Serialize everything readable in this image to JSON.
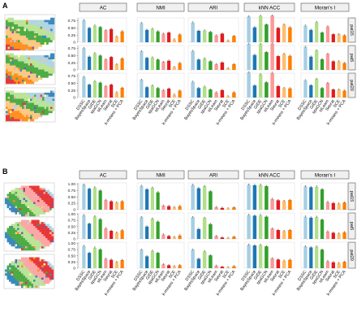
{
  "panels": [
    {
      "letter": "A",
      "metrics": [
        "AC",
        "NMI",
        "ARI",
        "kNN_ACC",
        "Moran's I"
      ],
      "metric_labels": [
        "AC",
        "NMI",
        "ARI",
        "kNN  ACC",
        "Moran's I"
      ],
      "rows": [
        "pat15",
        "pat5",
        "pat20"
      ],
      "ylim": [
        0,
        0.85
      ],
      "ticks": [
        0,
        0.25,
        0.5,
        0.75
      ],
      "tick_labels": [
        "0",
        "0.25",
        "0.50",
        "0.75"
      ],
      "chart_data": {
        "type": "bar",
        "categories": [
          "DSSC",
          "BayesSpace",
          "GIDE",
          "spaGCN",
          "stLearn",
          "Seurat",
          "SCE",
          "k-means + PCA"
        ],
        "values": {
          "pat15": {
            "AC": [
              0.77,
              0.5,
              0.58,
              0.53,
              0.42,
              0.46,
              0.2,
              0.38
            ],
            "NMI": [
              0.67,
              0.43,
              0.47,
              0.38,
              0.3,
              0.34,
              0.1,
              0.27
            ],
            "ARI": [
              0.69,
              0.4,
              0.41,
              0.36,
              0.24,
              0.3,
              0.06,
              0.22
            ],
            "kNN_ACC": [
              0.9,
              0.52,
              0.92,
              0.62,
              0.93,
              0.5,
              0.62,
              0.52
            ],
            "Moran's I": [
              0.58,
              0.43,
              0.7,
              0.34,
              0.55,
              0.28,
              0.28,
              0.24
            ]
          },
          "pat5": {
            "AC": [
              0.76,
              0.46,
              0.58,
              0.5,
              0.37,
              0.45,
              0.2,
              0.4
            ],
            "NMI": [
              0.65,
              0.42,
              0.43,
              0.36,
              0.28,
              0.32,
              0.1,
              0.24
            ],
            "ARI": [
              0.66,
              0.36,
              0.4,
              0.3,
              0.2,
              0.26,
              0.06,
              0.2
            ],
            "kNN_ACC": [
              0.91,
              0.52,
              0.9,
              0.62,
              0.92,
              0.48,
              0.56,
              0.49
            ],
            "Moran's I": [
              0.8,
              0.46,
              0.68,
              0.37,
              0.56,
              0.3,
              0.3,
              0.24
            ]
          },
          "pat20": {
            "AC": [
              0.72,
              0.45,
              0.57,
              0.52,
              0.4,
              0.45,
              0.18,
              0.34
            ],
            "NMI": [
              0.62,
              0.36,
              0.42,
              0.33,
              0.26,
              0.31,
              0.1,
              0.24
            ],
            "ARI": [
              0.55,
              0.33,
              0.38,
              0.28,
              0.18,
              0.26,
              0.04,
              0.18
            ],
            "kNN_ACC": [
              0.88,
              0.42,
              0.81,
              0.53,
              0.86,
              0.4,
              0.33,
              0.32
            ],
            "Moran's I": [
              0.6,
              0.43,
              0.65,
              0.33,
              0.51,
              0.28,
              0.28,
              0.24
            ]
          }
        }
      }
    },
    {
      "letter": "B",
      "metrics": [
        "AC",
        "NMI",
        "ARI",
        "kNN_ACC",
        "Moran's I"
      ],
      "metric_labels": [
        "AC",
        "NMI",
        "ARI",
        "kNN  ACC",
        "Moran's I"
      ],
      "rows": [
        "pat15",
        "pat5",
        "pat20"
      ],
      "ylim": [
        0,
        1.05
      ],
      "ticks": [
        0,
        0.25,
        0.5,
        0.75,
        1.0
      ],
      "tick_labels": [
        "0",
        "0.25",
        "0.50",
        "0.75",
        "1.00"
      ],
      "chart_data": {
        "type": "bar",
        "categories": [
          "DSSC",
          "BayesSpace",
          "GIDE",
          "spaGCN",
          "stLearn",
          "Seurat",
          "SCE",
          "k-means + PCA"
        ],
        "values": {
          "pat15": {
            "AC": [
              0.98,
              0.82,
              0.87,
              0.75,
              0.38,
              0.33,
              0.28,
              0.33
            ],
            "NMI": [
              0.93,
              0.8,
              0.86,
              0.68,
              0.16,
              0.14,
              0.1,
              0.14
            ],
            "ARI": [
              0.97,
              0.84,
              0.92,
              0.72,
              0.1,
              0.07,
              0.05,
              0.09
            ],
            "kNN_ACC": [
              0.98,
              0.96,
              0.97,
              0.92,
              0.42,
              0.37,
              0.34,
              0.38
            ],
            "Moran's I": [
              0.92,
              0.88,
              0.9,
              0.8,
              0.3,
              0.26,
              0.24,
              0.28
            ]
          },
          "pat5": {
            "AC": [
              0.96,
              0.62,
              0.91,
              0.8,
              0.43,
              0.33,
              0.26,
              0.35
            ],
            "NMI": [
              0.88,
              0.5,
              0.82,
              0.7,
              0.18,
              0.12,
              0.08,
              0.14
            ],
            "ARI": [
              0.88,
              0.4,
              0.85,
              0.6,
              0.12,
              0.06,
              0.04,
              0.09
            ],
            "kNN_ACC": [
              0.97,
              0.94,
              0.96,
              0.9,
              0.42,
              0.36,
              0.32,
              0.36
            ],
            "Moran's I": [
              0.9,
              0.86,
              0.89,
              0.78,
              0.3,
              0.25,
              0.22,
              0.27
            ]
          },
          "pat20": {
            "AC": [
              0.9,
              0.62,
              0.83,
              0.76,
              0.38,
              0.34,
              0.25,
              0.33
            ],
            "NMI": [
              0.75,
              0.48,
              0.7,
              0.62,
              0.16,
              0.12,
              0.08,
              0.12
            ],
            "ARI": [
              0.75,
              0.38,
              0.68,
              0.52,
              0.1,
              0.06,
              0.04,
              0.08
            ],
            "kNN_ACC": [
              0.95,
              0.92,
              0.94,
              0.88,
              0.4,
              0.35,
              0.3,
              0.34
            ],
            "Moran's I": [
              0.88,
              0.84,
              0.87,
              0.75,
              0.28,
              0.24,
              0.21,
              0.26
            ]
          }
        }
      }
    }
  ],
  "category_labels": [
    "DSSC",
    "BayesSpace",
    "GIDE",
    "spaGCN",
    "stLearn",
    "Seurat",
    "SCE",
    "k-means + PCA"
  ],
  "colors": [
    "#a6cee3",
    "#1f78b4",
    "#b2df8a",
    "#33a02c",
    "#fb9a99",
    "#e31a1c",
    "#fdbf6f",
    "#ff7f00"
  ],
  "strip_fill": "#f0f0f0",
  "tissue_colors": [
    "#a6cee3",
    "#1f78b4",
    "#33a02c",
    "#b2df8a",
    "#fb9a99",
    "#e31a1c",
    "#ff7f00",
    "#fdbf6f",
    "#6a3d9a",
    "#ffff99"
  ]
}
